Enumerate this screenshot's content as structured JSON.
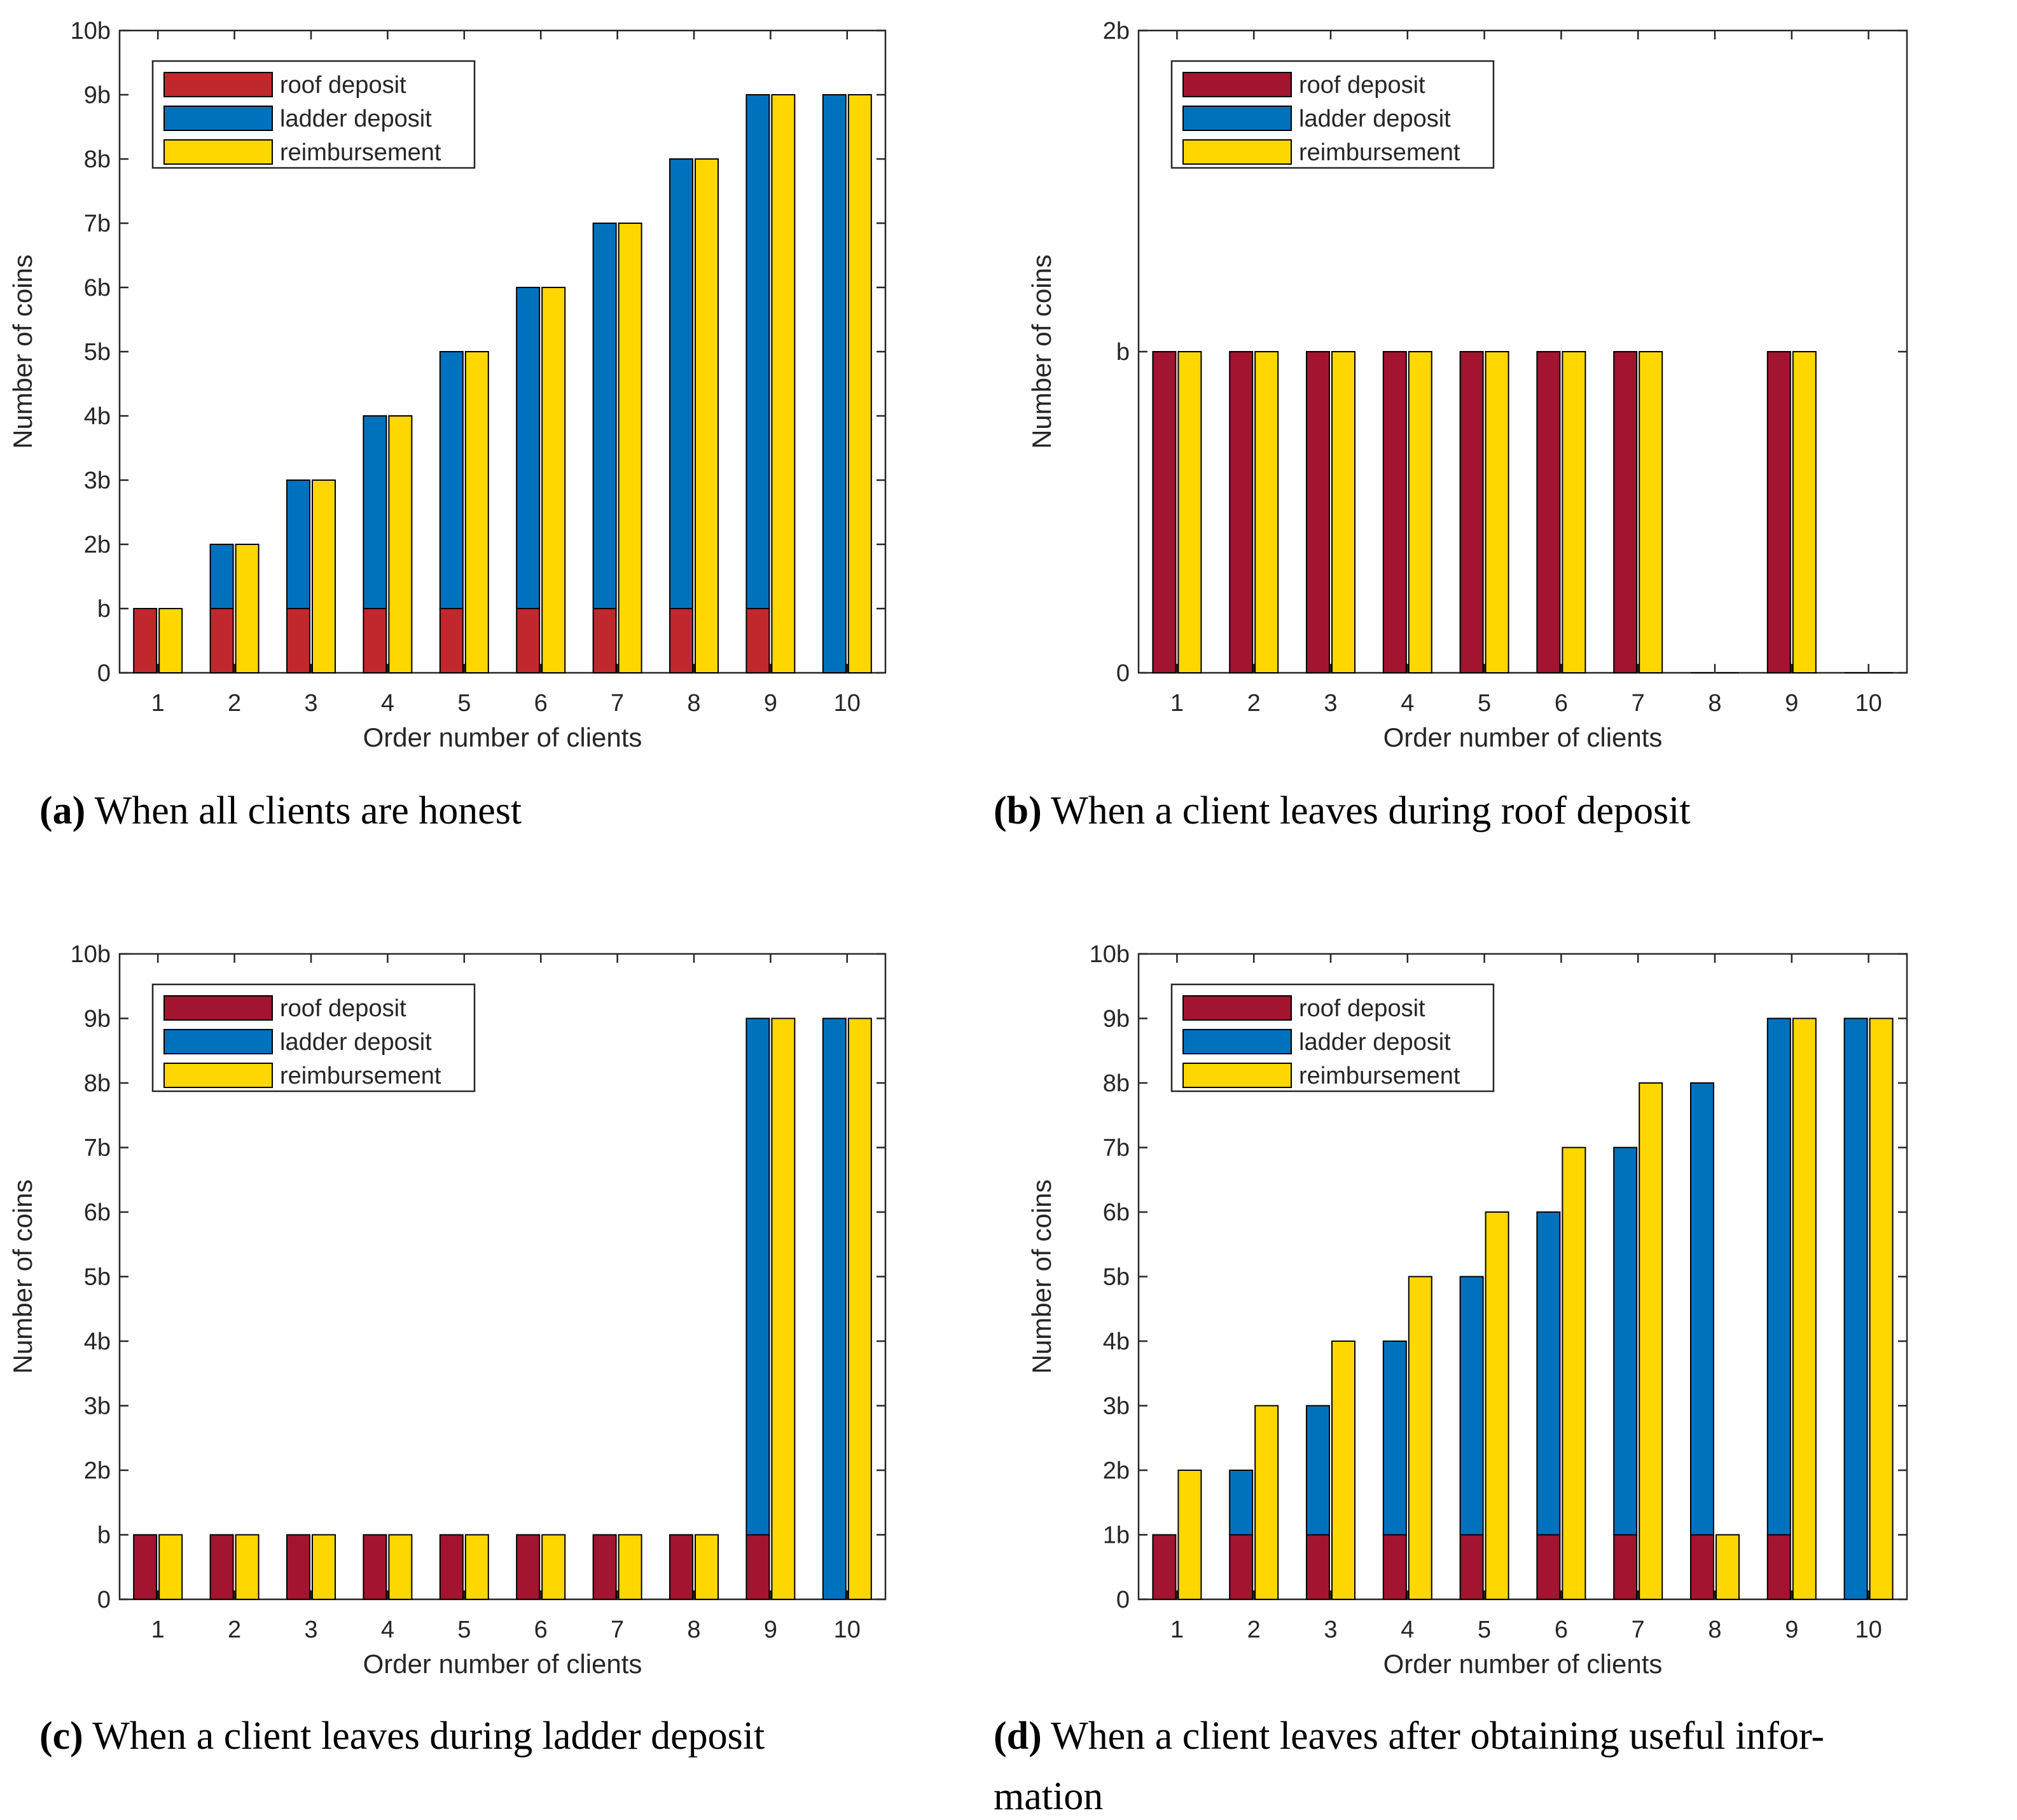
{
  "colors": {
    "roof_red_a": "#c0282d",
    "roof_red": "#a2142f",
    "ladder_blue": "#0072bd",
    "reimb_yellow": "#ffd700",
    "frame": "#262626",
    "bar_edge": "#000000"
  },
  "chart_data": [
    {
      "type": "bar",
      "stacked_left": true,
      "caption_letter": "(a)",
      "caption": "When all clients are honest",
      "xlabel": "Order number of clients",
      "ylabel": "Number of coins",
      "categories": [
        "1",
        "2",
        "3",
        "4",
        "5",
        "6",
        "7",
        "8",
        "9",
        "10"
      ],
      "ylim": [
        0,
        10
      ],
      "yticks": [
        0,
        1,
        2,
        3,
        4,
        5,
        6,
        7,
        8,
        9,
        10
      ],
      "yticklabels": [
        "0",
        "b",
        "2b",
        "3b",
        "4b",
        "5b",
        "6b",
        "7b",
        "8b",
        "9b",
        "10b"
      ],
      "legend_position": "top-left",
      "series": [
        {
          "name": "roof deposit",
          "color_key": "roof_red_a",
          "values": [
            1,
            1,
            1,
            1,
            1,
            1,
            1,
            1,
            1,
            0
          ]
        },
        {
          "name": "ladder deposit",
          "color_key": "ladder_blue",
          "values": [
            0,
            1,
            2,
            3,
            4,
            5,
            6,
            7,
            8,
            9
          ]
        },
        {
          "name": "reimbursement",
          "color_key": "reimb_yellow",
          "values": [
            1,
            2,
            3,
            4,
            5,
            6,
            7,
            8,
            9,
            9
          ]
        }
      ]
    },
    {
      "type": "bar",
      "stacked_left": true,
      "caption_letter": "(b)",
      "caption": "When a client leaves during roof deposit",
      "xlabel": "Order number of clients",
      "ylabel": "Number of coins",
      "categories": [
        "1",
        "2",
        "3",
        "4",
        "5",
        "6",
        "7",
        "8",
        "9",
        "10"
      ],
      "ylim": [
        0,
        2
      ],
      "yticks": [
        0,
        1,
        2
      ],
      "yticklabels": [
        "0",
        "b",
        "2b"
      ],
      "legend_position": "top-left",
      "series": [
        {
          "name": "roof deposit",
          "color_key": "roof_red",
          "values": [
            1,
            1,
            1,
            1,
            1,
            1,
            1,
            0,
            1,
            0
          ]
        },
        {
          "name": "ladder deposit",
          "color_key": "ladder_blue",
          "values": [
            0,
            0,
            0,
            0,
            0,
            0,
            0,
            0,
            0,
            0
          ]
        },
        {
          "name": "reimbursement",
          "color_key": "reimb_yellow",
          "values": [
            1,
            1,
            1,
            1,
            1,
            1,
            1,
            0,
            1,
            0
          ]
        }
      ]
    },
    {
      "type": "bar",
      "stacked_left": true,
      "caption_letter": "(c)",
      "caption": "When a client leaves during ladder deposit",
      "xlabel": "Order number of clients",
      "ylabel": "Number of coins",
      "categories": [
        "1",
        "2",
        "3",
        "4",
        "5",
        "6",
        "7",
        "8",
        "9",
        "10"
      ],
      "ylim": [
        0,
        10
      ],
      "yticks": [
        0,
        1,
        2,
        3,
        4,
        5,
        6,
        7,
        8,
        9,
        10
      ],
      "yticklabels": [
        "0",
        "b",
        "2b",
        "3b",
        "4b",
        "5b",
        "6b",
        "7b",
        "8b",
        "9b",
        "10b"
      ],
      "legend_position": "top-left",
      "series": [
        {
          "name": "roof deposit",
          "color_key": "roof_red",
          "values": [
            1,
            1,
            1,
            1,
            1,
            1,
            1,
            1,
            1,
            0
          ]
        },
        {
          "name": "ladder deposit",
          "color_key": "ladder_blue",
          "values": [
            0,
            0,
            0,
            0,
            0,
            0,
            0,
            0,
            8,
            9
          ]
        },
        {
          "name": "reimbursement",
          "color_key": "reimb_yellow",
          "values": [
            1,
            1,
            1,
            1,
            1,
            1,
            1,
            1,
            9,
            9
          ]
        }
      ]
    },
    {
      "type": "bar",
      "stacked_left": true,
      "caption_letter": "(d)",
      "caption": "When a client leaves after obtaining useful infor-",
      "caption_line2": "mation",
      "xlabel": "Order number of clients",
      "ylabel": "Number of coins",
      "categories": [
        "1",
        "2",
        "3",
        "4",
        "5",
        "6",
        "7",
        "8",
        "9",
        "10"
      ],
      "ylim": [
        0,
        10
      ],
      "yticks": [
        0,
        1,
        2,
        3,
        4,
        5,
        6,
        7,
        8,
        9,
        10
      ],
      "yticklabels": [
        "0",
        "1b",
        "2b",
        "3b",
        "4b",
        "5b",
        "6b",
        "7b",
        "8b",
        "9b",
        "10b"
      ],
      "legend_position": "top-left",
      "series": [
        {
          "name": "roof deposit",
          "color_key": "roof_red",
          "values": [
            1,
            1,
            1,
            1,
            1,
            1,
            1,
            1,
            1,
            0
          ]
        },
        {
          "name": "ladder deposit",
          "color_key": "ladder_blue",
          "values": [
            0,
            1,
            2,
            3,
            4,
            5,
            6,
            7,
            8,
            9
          ]
        },
        {
          "name": "reimbursement",
          "color_key": "reimb_yellow",
          "values": [
            2,
            3,
            4,
            5,
            6,
            7,
            8,
            1,
            9,
            9
          ]
        }
      ]
    }
  ]
}
